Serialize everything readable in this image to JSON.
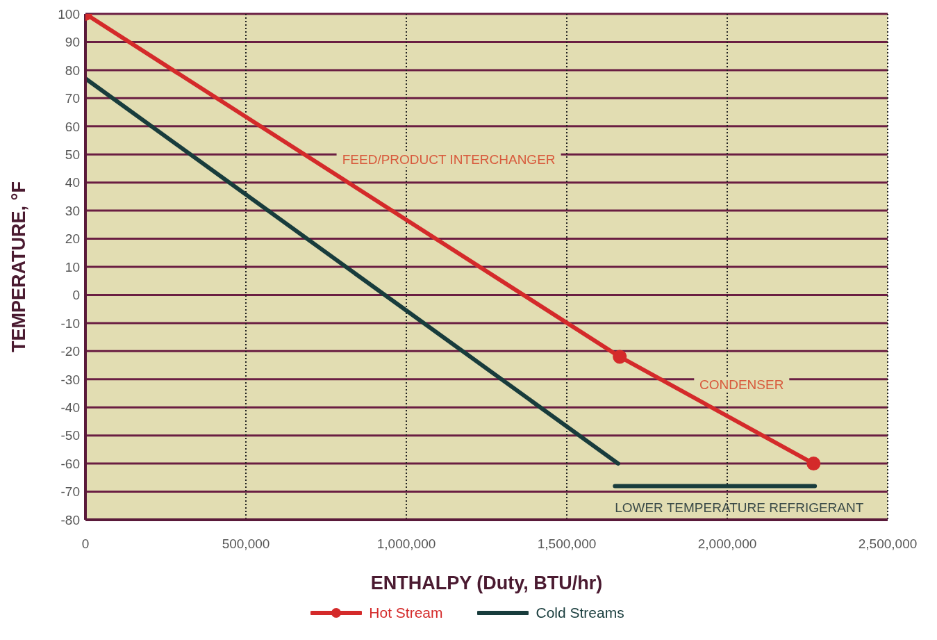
{
  "chart_data": {
    "type": "line",
    "xlabel": "ENTHALPY (Duty, BTU/hr)",
    "ylabel": "TEMPERATURE, °F",
    "xlim": [
      0,
      2500000
    ],
    "xticks": [
      0,
      {
        "value": 500000,
        "label": "500,000"
      },
      {
        "value": 1000000,
        "label": "1,000,000"
      },
      {
        "value": 1500000,
        "label": "1,500,000"
      },
      {
        "value": 2000000,
        "label": "2,000,000"
      },
      {
        "value": 2500000,
        "label": "2,500,000"
      }
    ],
    "ylim": [
      -80,
      100
    ],
    "yticks": [
      -80,
      -70,
      -60,
      -50,
      -40,
      -30,
      -20,
      -10,
      0,
      10,
      20,
      30,
      40,
      50,
      60,
      70,
      80,
      90,
      100
    ],
    "grid": true,
    "legend": "bottom",
    "line_style": "solid",
    "series": [
      {
        "name": "Hot Stream",
        "color": "#d42a2a",
        "marker": "circle",
        "x": [
          0,
          1665000,
          2269000
        ],
        "values": [
          100,
          -22,
          -60
        ]
      },
      {
        "name": "Cold Streams",
        "color": "#183c3c",
        "marker": "none",
        "x": [
          0,
          1660000
        ],
        "values": [
          77,
          -60
        ]
      },
      {
        "color": "#183c3c",
        "marker": "none",
        "x": [
          1650000,
          2273000
        ],
        "values": [
          -68,
          -68
        ]
      }
    ],
    "annotations": [
      "FEED/PRODUCT INTERCHANGER",
      "CONDENSER",
      "LOWER TEMPERATURE REFRIGERANT"
    ]
  }
}
